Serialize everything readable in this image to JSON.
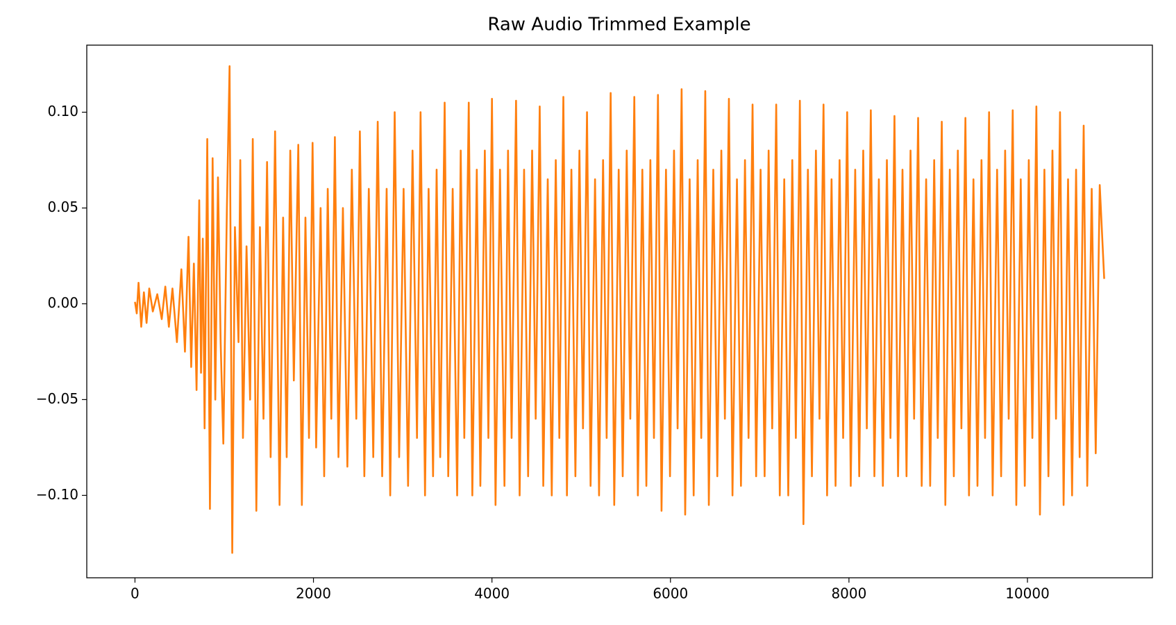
{
  "chart_data": {
    "type": "line",
    "title": "Raw Audio Trimmed Example",
    "x": [
      0,
      20,
      40,
      70,
      100,
      130,
      160,
      200,
      250,
      300,
      340,
      380,
      420,
      470,
      520,
      560,
      600,
      630,
      660,
      690,
      720,
      740,
      760,
      780,
      810,
      840,
      870,
      900,
      930,
      960,
      990,
      1030,
      1060,
      1090,
      1120,
      1160,
      1180,
      1210,
      1250,
      1290,
      1320,
      1360,
      1400,
      1440,
      1480,
      1520,
      1570,
      1620,
      1660,
      1700,
      1740,
      1780,
      1830,
      1870,
      1910,
      1950,
      1990,
      2030,
      2080,
      2120,
      2160,
      2200,
      2240,
      2280,
      2330,
      2380,
      2430,
      2480,
      2520,
      2570,
      2620,
      2670,
      2720,
      2770,
      2820,
      2860,
      2910,
      2960,
      3010,
      3060,
      3110,
      3160,
      3200,
      3250,
      3290,
      3340,
      3380,
      3420,
      3470,
      3510,
      3560,
      3610,
      3650,
      3690,
      3740,
      3780,
      3830,
      3870,
      3920,
      3960,
      4000,
      4040,
      4090,
      4140,
      4180,
      4220,
      4270,
      4310,
      4360,
      4405,
      4450,
      4490,
      4535,
      4575,
      4625,
      4670,
      4715,
      4755,
      4800,
      4840,
      4890,
      4935,
      4980,
      5020,
      5065,
      5105,
      5155,
      5200,
      5245,
      5285,
      5330,
      5370,
      5420,
      5465,
      5510,
      5550,
      5595,
      5635,
      5685,
      5730,
      5775,
      5815,
      5860,
      5900,
      5950,
      5995,
      6040,
      6080,
      6125,
      6165,
      6215,
      6260,
      6305,
      6345,
      6390,
      6430,
      6480,
      6525,
      6570,
      6610,
      6655,
      6695,
      6745,
      6790,
      6835,
      6875,
      6920,
      6960,
      7010,
      7055,
      7100,
      7140,
      7185,
      7225,
      7275,
      7320,
      7365,
      7405,
      7450,
      7490,
      7540,
      7585,
      7630,
      7670,
      7715,
      7755,
      7805,
      7850,
      7895,
      7935,
      7980,
      8020,
      8070,
      8115,
      8160,
      8200,
      8245,
      8285,
      8335,
      8380,
      8425,
      8465,
      8510,
      8550,
      8600,
      8645,
      8690,
      8730,
      8775,
      8815,
      8865,
      8910,
      8955,
      8995,
      9040,
      9080,
      9130,
      9175,
      9220,
      9260,
      9305,
      9345,
      9395,
      9440,
      9485,
      9525,
      9570,
      9610,
      9660,
      9705,
      9750,
      9790,
      9835,
      9875,
      9925,
      9970,
      10015,
      10055,
      10100,
      10140,
      10190,
      10235,
      10280,
      10320,
      10365,
      10405,
      10455,
      10500,
      10545,
      10585,
      10630,
      10670,
      10720,
      10765,
      10810,
      10860
    ],
    "series": [
      {
        "color": "#ff7f0e",
        "values": [
          0.001,
          -0.005,
          0.011,
          -0.012,
          0.006,
          -0.01,
          0.008,
          -0.004,
          0.005,
          -0.008,
          0.009,
          -0.012,
          0.008,
          -0.02,
          0.018,
          -0.025,
          0.035,
          -0.033,
          0.021,
          -0.045,
          0.054,
          -0.036,
          0.034,
          -0.065,
          0.086,
          -0.107,
          0.076,
          -0.05,
          0.066,
          -0.02,
          -0.073,
          0.05,
          0.124,
          -0.13,
          0.04,
          -0.02,
          0.075,
          -0.07,
          0.03,
          -0.05,
          0.086,
          -0.108,
          0.04,
          -0.06,
          0.074,
          -0.08,
          0.09,
          -0.105,
          0.045,
          -0.08,
          0.08,
          -0.04,
          0.083,
          -0.105,
          0.045,
          -0.07,
          0.084,
          -0.075,
          0.05,
          -0.09,
          0.06,
          -0.06,
          0.087,
          -0.08,
          0.05,
          -0.085,
          0.07,
          -0.06,
          0.09,
          -0.09,
          0.06,
          -0.08,
          0.095,
          -0.09,
          0.06,
          -0.1,
          0.1,
          -0.08,
          0.06,
          -0.095,
          0.08,
          -0.07,
          0.1,
          -0.1,
          0.06,
          -0.09,
          0.07,
          -0.08,
          0.105,
          -0.09,
          0.06,
          -0.1,
          0.08,
          -0.07,
          0.105,
          -0.1,
          0.07,
          -0.095,
          0.08,
          -0.07,
          0.107,
          -0.105,
          0.07,
          -0.095,
          0.08,
          -0.07,
          0.106,
          -0.1,
          0.07,
          -0.09,
          0.08,
          -0.06,
          0.103,
          -0.095,
          0.065,
          -0.1,
          0.075,
          -0.07,
          0.108,
          -0.1,
          0.07,
          -0.09,
          0.08,
          -0.065,
          0.1,
          -0.095,
          0.065,
          -0.1,
          0.075,
          -0.07,
          0.11,
          -0.105,
          0.07,
          -0.09,
          0.08,
          -0.06,
          0.108,
          -0.1,
          0.07,
          -0.095,
          0.075,
          -0.07,
          0.109,
          -0.108,
          0.07,
          -0.09,
          0.08,
          -0.065,
          0.112,
          -0.11,
          0.065,
          -0.1,
          0.075,
          -0.07,
          0.111,
          -0.105,
          0.07,
          -0.09,
          0.08,
          -0.06,
          0.107,
          -0.1,
          0.065,
          -0.095,
          0.075,
          -0.07,
          0.104,
          -0.09,
          0.07,
          -0.09,
          0.08,
          -0.065,
          0.104,
          -0.1,
          0.065,
          -0.1,
          0.075,
          -0.07,
          0.106,
          -0.115,
          0.07,
          -0.09,
          0.08,
          -0.06,
          0.104,
          -0.1,
          0.065,
          -0.095,
          0.075,
          -0.07,
          0.1,
          -0.095,
          0.07,
          -0.09,
          0.08,
          -0.065,
          0.101,
          -0.09,
          0.065,
          -0.095,
          0.075,
          -0.07,
          0.098,
          -0.09,
          0.07,
          -0.09,
          0.08,
          -0.06,
          0.097,
          -0.095,
          0.065,
          -0.095,
          0.075,
          -0.07,
          0.095,
          -0.105,
          0.07,
          -0.09,
          0.08,
          -0.065,
          0.097,
          -0.1,
          0.065,
          -0.095,
          0.075,
          -0.07,
          0.1,
          -0.1,
          0.07,
          -0.09,
          0.08,
          -0.06,
          0.101,
          -0.105,
          0.065,
          -0.095,
          0.075,
          -0.07,
          0.103,
          -0.11,
          0.07,
          -0.09,
          0.08,
          -0.06,
          0.1,
          -0.105,
          0.065,
          -0.1,
          0.07,
          -0.08,
          0.093,
          -0.095,
          0.06,
          -0.078,
          0.062,
          0.013
        ]
      }
    ],
    "xlim": [
      -540,
      11400
    ],
    "ylim": [
      -0.143,
      0.135
    ],
    "xticks": [
      0,
      2000,
      4000,
      6000,
      8000,
      10000
    ],
    "yticks": [
      {
        "value": -0.1,
        "label": "−0.10"
      },
      {
        "value": -0.05,
        "label": "−0.05"
      },
      {
        "value": 0,
        "label": "0.00"
      },
      {
        "value": 0.05,
        "label": "0.05"
      },
      {
        "value": 0.1,
        "label": "0.10"
      }
    ]
  }
}
